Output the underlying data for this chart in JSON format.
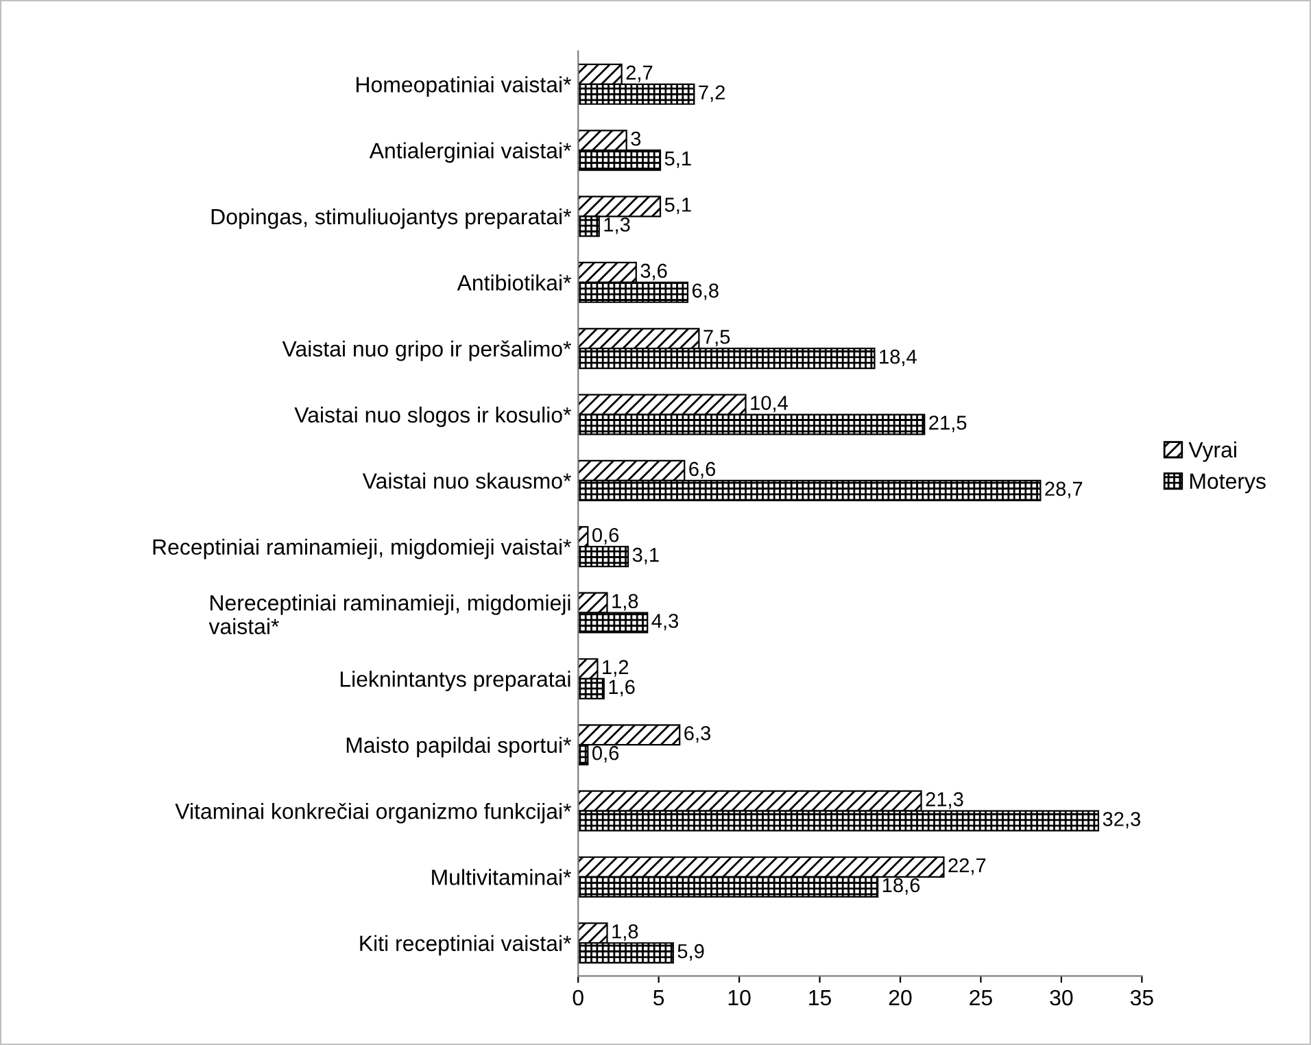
{
  "chart_data": {
    "type": "bar",
    "orientation": "horizontal",
    "categories": [
      "Homeopatiniai vaistai*",
      "Antialerginiai vaistai*",
      "Dopingas, stimuliuojantys preparatai*",
      "Antibiotikai*",
      "Vaistai nuo gripo ir peršalimo*",
      "Vaistai nuo slogos ir kosulio*",
      "Vaistai nuo skausmo*",
      "Receptiniai raminamieji, migdomieji vaistai*",
      "Nereceptiniai raminamieji, migdomieji\nvaistai*",
      "Lieknintantys preparatai",
      "Maisto papildai sportui*",
      "Vitaminai konkrečiai organizmo funkcijai*",
      "Multivitaminai*",
      "Kiti receptiniai vaistai*"
    ],
    "series": [
      {
        "name": "Vyrai",
        "color": "#000000",
        "values": [
          2.7,
          3,
          5.1,
          3.6,
          7.5,
          10.4,
          6.6,
          0.6,
          1.8,
          1.2,
          6.3,
          21.3,
          22.7,
          1.8
        ],
        "value_labels": [
          "2,7",
          "3",
          "5,1",
          "3,6",
          "7,5",
          "10,4",
          "6,6",
          "0,6",
          "1,8",
          "1,2",
          "6,3",
          "21,3",
          "22,7",
          "1,8"
        ]
      },
      {
        "name": "Moterys",
        "color": "#000000",
        "values": [
          7.2,
          5.1,
          1.3,
          6.8,
          18.4,
          21.5,
          28.7,
          3.1,
          4.3,
          1.6,
          0.6,
          32.3,
          18.6,
          5.9
        ],
        "value_labels": [
          "7,2",
          "5,1",
          "1,3",
          "6,8",
          "18,4",
          "21,5",
          "28,7",
          "3,1",
          "4,3",
          "1,6",
          "0,6",
          "32,3",
          "18,6",
          "5,9"
        ]
      }
    ],
    "xlim": [
      0,
      35
    ],
    "xticks": [
      0,
      5,
      10,
      15,
      20,
      25,
      30,
      35
    ],
    "grid": false,
    "legend": "right"
  }
}
